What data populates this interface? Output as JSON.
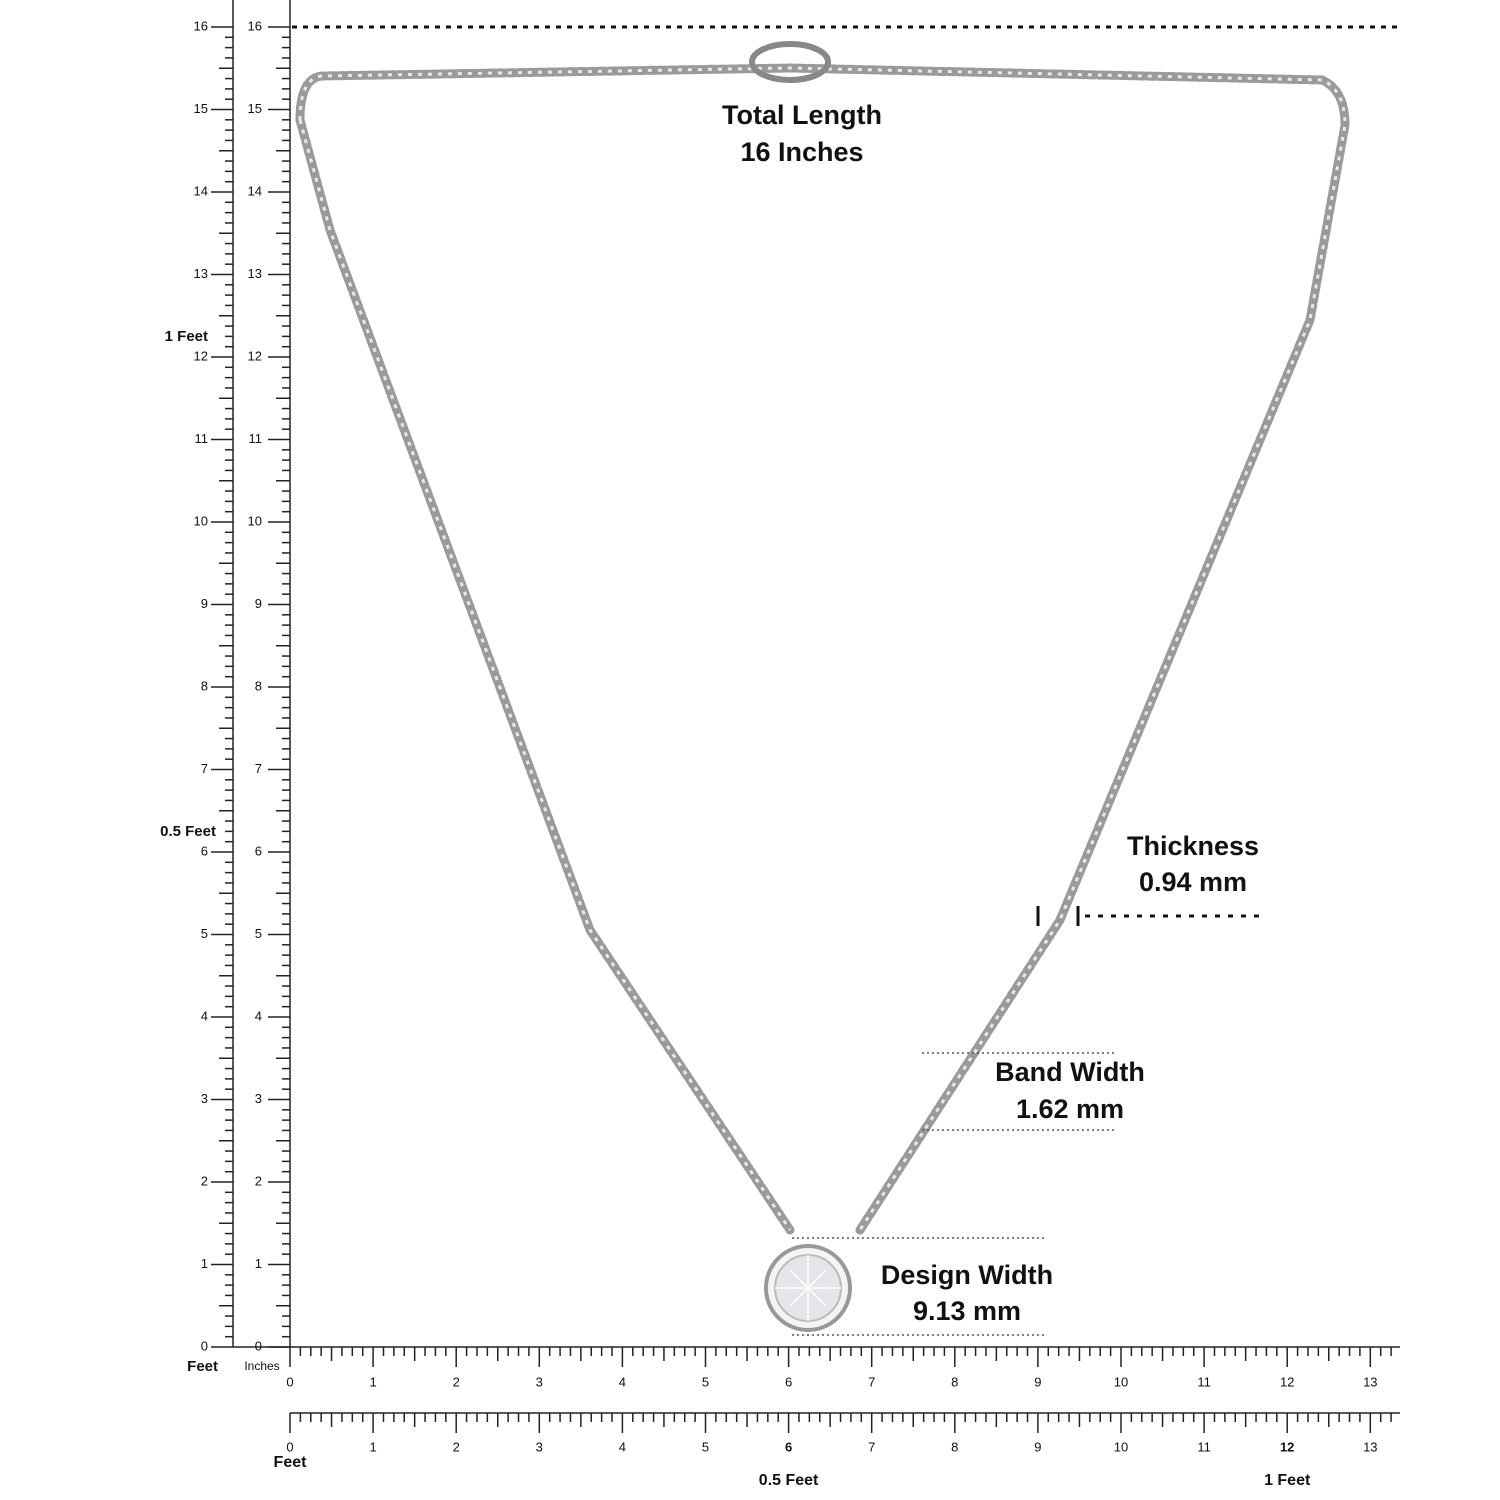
{
  "annotations": {
    "total_length": {
      "title": "Total Length",
      "value": "16 Inches"
    },
    "thickness": {
      "title": "Thickness",
      "value": "0.94 mm"
    },
    "band_width": {
      "title": "Band Width",
      "value": "1.62 mm"
    },
    "design_width": {
      "title": "Design Width",
      "value": "9.13 mm"
    }
  },
  "left_ruler": {
    "feet_scale": {
      "labels": [
        "0",
        "1",
        "2",
        "3",
        "4",
        "5",
        "6",
        "7",
        "8",
        "9",
        "10",
        "11",
        "12",
        "13",
        "14",
        "15",
        "16"
      ],
      "unit_label": "Feet",
      "half_foot_label": "0.5 Feet",
      "foot_label": "1 Feet"
    },
    "inch_scale": {
      "labels": [
        "0",
        "1",
        "2",
        "3",
        "4",
        "5",
        "6",
        "7",
        "8",
        "9",
        "10",
        "11",
        "12",
        "13",
        "14",
        "15",
        "16"
      ],
      "unit_label": "Inches"
    }
  },
  "bottom_rulers": {
    "inch_scale": {
      "labels": [
        "0",
        "1",
        "2",
        "3",
        "4",
        "5",
        "6",
        "7",
        "8",
        "9",
        "10",
        "11",
        "12",
        "13"
      ]
    },
    "feet_scale": {
      "labels": [
        "0",
        "1",
        "2",
        "3",
        "4",
        "5",
        "6",
        "7",
        "8",
        "9",
        "10",
        "11",
        "12",
        "13"
      ],
      "unit_label": "Feet",
      "half_foot_label": "0.5 Feet",
      "foot_label": "1 Feet"
    }
  }
}
